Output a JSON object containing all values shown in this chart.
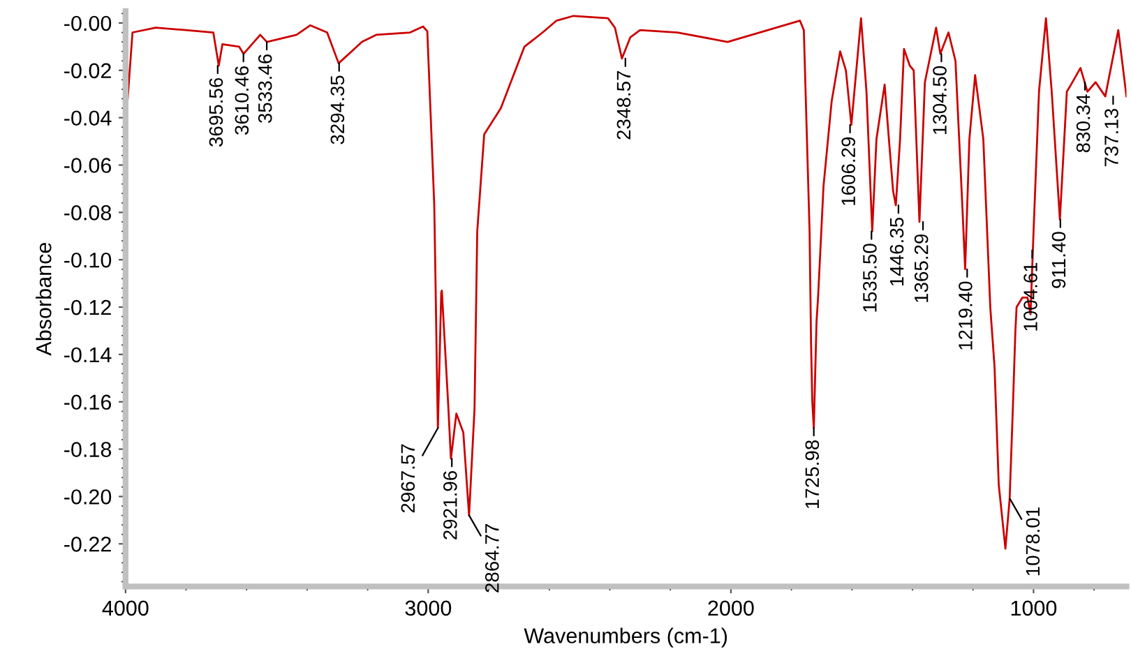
{
  "chart_data": {
    "type": "line",
    "xlabel": "Wavenumbers (cm-1)",
    "ylabel": "Absorbance",
    "xlim": [
      4000,
      693
    ],
    "xticks": [
      4000,
      3000,
      2000,
      1000
    ],
    "ylim": [
      -0.238,
      0.005
    ],
    "yticks": [
      {
        "value": 0,
        "label": "-0.00"
      },
      -0.02,
      -0.04,
      -0.06,
      -0.08,
      {
        "value": -0.1,
        "label": "-0.10"
      },
      -0.12,
      -0.14,
      -0.16,
      -0.18,
      {
        "value": -0.2,
        "label": "-0.20"
      },
      -0.22
    ],
    "grid": false,
    "marker": "none",
    "line_style": "solid",
    "series": [
      {
        "color": "#cc0000",
        "x": [
          3997,
          3977,
          3900,
          3800,
          3710,
          3692,
          3680,
          3625,
          3610,
          3555,
          3533,
          3435,
          3390,
          3334,
          3296,
          3219,
          3172,
          3060,
          3017,
          3003,
          2980,
          2975,
          2971,
          2968,
          2957,
          2955,
          2934,
          2925,
          2907,
          2884,
          2865,
          2847,
          2838,
          2815,
          2760,
          2682,
          2622,
          2576,
          2520,
          2406,
          2383,
          2360,
          2332,
          2300,
          2176,
          2011,
          1772,
          1759,
          1740,
          1735,
          1731,
          1726,
          1717,
          1712,
          1694,
          1667,
          1639,
          1620,
          1602,
          1570,
          1552,
          1533,
          1519,
          1492,
          1478,
          1464,
          1455,
          1441,
          1428,
          1409,
          1396,
          1377,
          1359,
          1322,
          1308,
          1281,
          1258,
          1235,
          1226,
          1212,
          1193,
          1166,
          1143,
          1129,
          1115,
          1093,
          1079,
          1069,
          1060,
          1056,
          1037,
          1020,
          1010,
          1000,
          982,
          959,
          940,
          913,
          890,
          876,
          845,
          822,
          795,
          763,
          720,
          693
        ],
        "values": [
          -0.039,
          -0.004,
          -0.002,
          -0.003,
          -0.004,
          -0.018,
          -0.009,
          -0.01,
          -0.013,
          -0.005,
          -0.008,
          -0.005,
          -0.001,
          -0.004,
          -0.017,
          -0.008,
          -0.005,
          -0.004,
          -0.0015,
          -0.0035,
          -0.077,
          -0.116,
          -0.15,
          -0.171,
          -0.114,
          -0.113,
          -0.161,
          -0.184,
          -0.165,
          -0.173,
          -0.208,
          -0.163,
          -0.088,
          -0.047,
          -0.036,
          -0.01,
          -0.004,
          0.001,
          0.003,
          0.002,
          -0.002,
          -0.015,
          -0.006,
          -0.003,
          -0.004,
          -0.008,
          0.001,
          -0.003,
          -0.088,
          -0.136,
          -0.16,
          -0.171,
          -0.126,
          -0.116,
          -0.069,
          -0.033,
          -0.012,
          -0.02,
          -0.043,
          0.002,
          -0.029,
          -0.088,
          -0.049,
          -0.026,
          -0.049,
          -0.071,
          -0.077,
          -0.049,
          -0.011,
          -0.018,
          -0.02,
          -0.084,
          -0.025,
          -0.002,
          -0.013,
          -0.004,
          -0.016,
          -0.078,
          -0.104,
          -0.049,
          -0.022,
          -0.049,
          -0.12,
          -0.145,
          -0.195,
          -0.222,
          -0.201,
          -0.165,
          -0.13,
          -0.12,
          -0.116,
          -0.116,
          -0.123,
          -0.088,
          -0.029,
          0.002,
          -0.029,
          -0.083,
          -0.029,
          -0.026,
          -0.019,
          -0.029,
          -0.025,
          -0.031,
          -0.003,
          -0.031
        ]
      }
    ],
    "annotations": [
      {
        "text": "3695.56",
        "x": 3695.56,
        "y": -0.018
      },
      {
        "text": "3610.46",
        "x": 3610.46,
        "y": -0.013
      },
      {
        "text": "3533.46",
        "x": 3533.46,
        "y": -0.008
      },
      {
        "text": "3294.35",
        "x": 3294.35,
        "y": -0.017
      },
      {
        "text": "2967.57",
        "x": 2967.57,
        "y": -0.171
      },
      {
        "text": "2921.96",
        "x": 2921.96,
        "y": -0.184
      },
      {
        "text": "2864.77",
        "x": 2864.77,
        "y": -0.208
      },
      {
        "text": "2348.57",
        "x": 2348.57,
        "y": -0.015
      },
      {
        "text": "1725.98",
        "x": 1725.98,
        "y": -0.171
      },
      {
        "text": "1606.29",
        "x": 1606.29,
        "y": -0.043
      },
      {
        "text": "1535.50",
        "x": 1535.5,
        "y": -0.088
      },
      {
        "text": "1446.35",
        "x": 1446.35,
        "y": -0.077
      },
      {
        "text": "1365.29",
        "x": 1365.29,
        "y": -0.084
      },
      {
        "text": "1304.50",
        "x": 1304.5,
        "y": -0.013
      },
      {
        "text": "1219.40",
        "x": 1219.4,
        "y": -0.104
      },
      {
        "text": "1078.01",
        "x": 1078.01,
        "y": -0.201
      },
      {
        "text": "1004.61",
        "x": 1004.61,
        "y": -0.096
      },
      {
        "text": "911.40",
        "x": 911.4,
        "y": -0.083
      },
      {
        "text": "830.34",
        "x": 830.34,
        "y": -0.025
      },
      {
        "text": "737.13",
        "x": 737.13,
        "y": -0.031
      }
    ]
  }
}
